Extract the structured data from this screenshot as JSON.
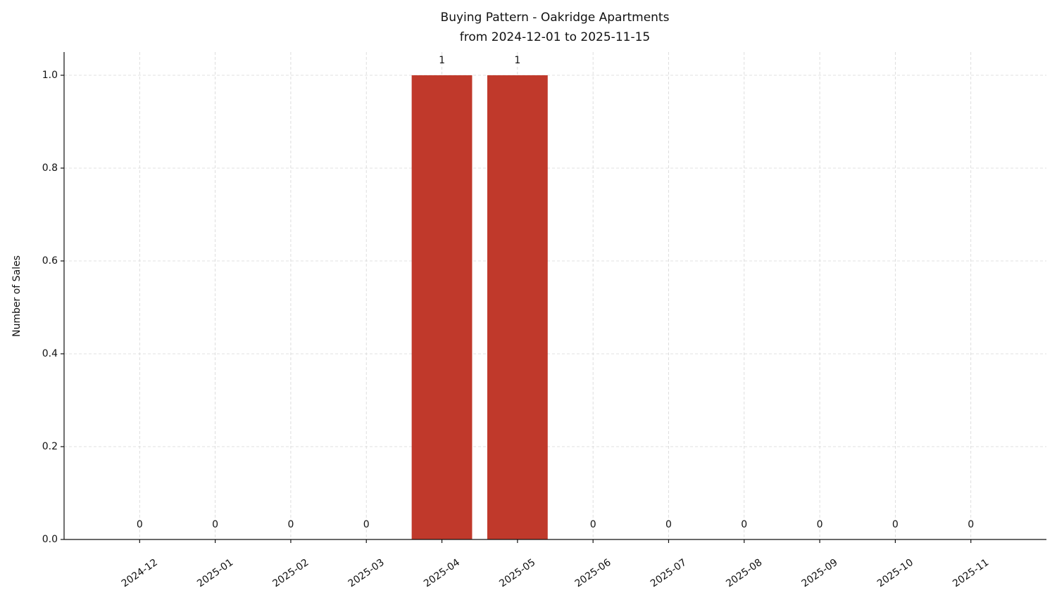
{
  "chart_data": {
    "type": "bar",
    "title": "Buying Pattern - Oakridge Apartments",
    "subtitle": "from 2024-12-01 to 2025-11-15",
    "y_label": "Number of Sales",
    "categories": [
      "2024-12",
      "2025-01",
      "2025-02",
      "2025-03",
      "2025-04",
      "2025-05",
      "2025-06",
      "2025-07",
      "2025-08",
      "2025-09",
      "2025-10",
      "2025-11"
    ],
    "values": [
      0,
      0,
      0,
      0,
      1,
      1,
      0,
      0,
      0,
      0,
      0,
      0
    ],
    "color": "#c0392b",
    "ylim": [
      0,
      1.05
    ],
    "yticks": [
      {
        "value": 0,
        "label": "0.0"
      },
      {
        "value": 0.2,
        "label": "0.2"
      },
      {
        "value": 0.4,
        "label": "0.4"
      },
      {
        "value": 0.6,
        "label": "0.6"
      },
      {
        "value": 0.8,
        "label": "0.8"
      },
      {
        "value": 1,
        "label": "1.0"
      }
    ],
    "grid": true
  }
}
